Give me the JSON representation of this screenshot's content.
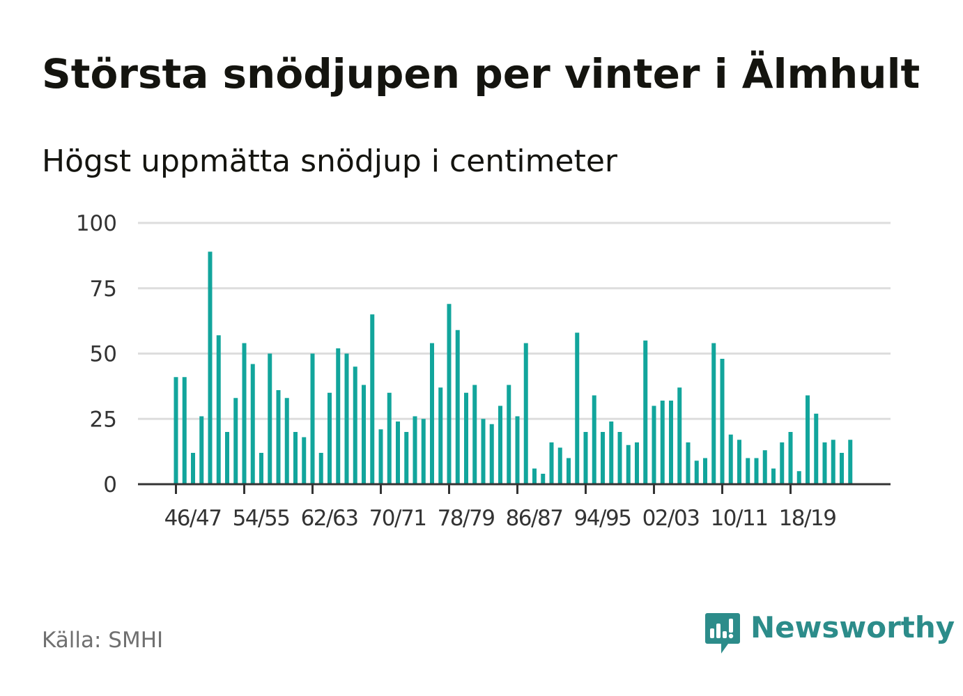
{
  "title": "Största snödjupen per vinter i Älmhult",
  "subtitle": "Högst uppmätta snödjup i centimeter",
  "source": "Källa: SMHI",
  "brand": {
    "name": "Newsworthy",
    "icon": "newsworthy-logo-icon",
    "color": "#2c8c8a"
  },
  "colors": {
    "bar": "#12a59c",
    "grid": "#dddddd",
    "axis": "#333333",
    "text": "#333333"
  },
  "chart_data": {
    "type": "bar",
    "title": "Största snödjupen per vinter i Älmhult",
    "subtitle": "Högst uppmätta snödjup i centimeter",
    "xlabel": "",
    "ylabel": "",
    "ylim": [
      0,
      100
    ],
    "yticks": [
      0,
      25,
      50,
      75,
      100
    ],
    "grid": true,
    "xtick_labels": [
      "46/47",
      "54/55",
      "62/63",
      "70/71",
      "78/79",
      "86/87",
      "94/95",
      "02/03",
      "10/11",
      "18/19"
    ],
    "categories": [
      "46/47",
      "47/48",
      "48/49",
      "49/50",
      "50/51",
      "51/52",
      "52/53",
      "53/54",
      "54/55",
      "55/56",
      "56/57",
      "57/58",
      "58/59",
      "59/60",
      "60/61",
      "61/62",
      "62/63",
      "63/64",
      "64/65",
      "65/66",
      "66/67",
      "67/68",
      "68/69",
      "69/70",
      "70/71",
      "71/72",
      "72/73",
      "73/74",
      "74/75",
      "75/76",
      "76/77",
      "77/78",
      "78/79",
      "79/80",
      "80/81",
      "81/82",
      "82/83",
      "83/84",
      "84/85",
      "85/86",
      "86/87",
      "87/88",
      "88/89",
      "89/90",
      "90/91",
      "91/92",
      "92/93",
      "93/94",
      "94/95",
      "95/96",
      "96/97",
      "97/98",
      "98/99",
      "99/00",
      "00/01",
      "01/02",
      "02/03",
      "03/04",
      "04/05",
      "05/06",
      "06/07",
      "07/08",
      "08/09",
      "09/10",
      "10/11",
      "11/12",
      "12/13",
      "13/14",
      "14/15",
      "15/16",
      "16/17",
      "17/18",
      "18/19",
      "19/20",
      "20/21",
      "21/22",
      "22/23",
      "23/24",
      "24/25",
      "25/26"
    ],
    "values": [
      41,
      41,
      12,
      26,
      89,
      57,
      20,
      33,
      54,
      46,
      12,
      50,
      36,
      33,
      20,
      18,
      50,
      12,
      35,
      52,
      50,
      45,
      38,
      65,
      21,
      35,
      24,
      20,
      26,
      25,
      54,
      37,
      69,
      59,
      35,
      38,
      25,
      23,
      30,
      38,
      26,
      54,
      6,
      4,
      16,
      14,
      10,
      58,
      20,
      34,
      20,
      24,
      20,
      15,
      16,
      55,
      30,
      32,
      32,
      37,
      16,
      9,
      10,
      54,
      48,
      19,
      17,
      10,
      10,
      13,
      6,
      16,
      20,
      5,
      34,
      27,
      16,
      17,
      12,
      17
    ]
  }
}
